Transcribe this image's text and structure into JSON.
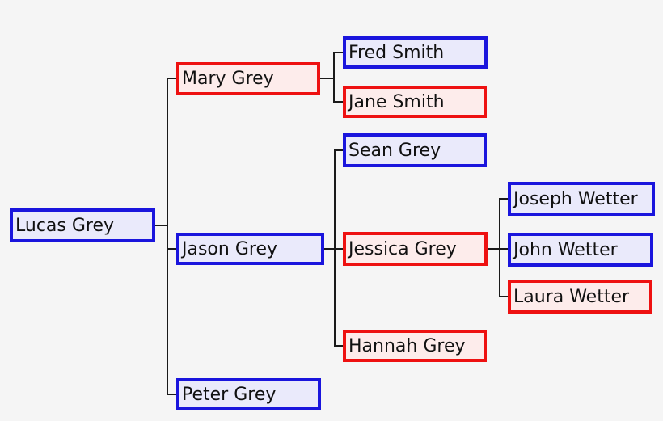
{
  "diagram": {
    "type": "family-tree",
    "colors": {
      "blue_border": "#1a15dd",
      "blue_fill": "#eaeafb",
      "red_border": "#ee1111",
      "red_fill": "#fdeceb",
      "line": "#1a1a1a",
      "background": "#f5f5f5"
    },
    "nodes": {
      "lucas": {
        "label": "Lucas Grey",
        "color": "blue"
      },
      "mary": {
        "label": "Mary Grey",
        "color": "red"
      },
      "jason": {
        "label": "Jason Grey",
        "color": "blue"
      },
      "peter": {
        "label": "Peter Grey",
        "color": "blue"
      },
      "fred": {
        "label": "Fred Smith",
        "color": "blue"
      },
      "jane": {
        "label": "Jane Smith",
        "color": "red"
      },
      "sean": {
        "label": "Sean Grey",
        "color": "blue"
      },
      "jessica": {
        "label": "Jessica Grey",
        "color": "red"
      },
      "hannah": {
        "label": "Hannah Grey",
        "color": "red"
      },
      "joseph": {
        "label": "Joseph Wetter",
        "color": "blue"
      },
      "john": {
        "label": "John Wetter",
        "color": "blue"
      },
      "laura": {
        "label": "Laura Wetter",
        "color": "red"
      }
    },
    "tree": {
      "name": "Lucas Grey",
      "children": [
        {
          "name": "Mary Grey",
          "children": [
            {
              "name": "Fred Smith"
            },
            {
              "name": "Jane Smith"
            }
          ]
        },
        {
          "name": "Jason Grey",
          "children": [
            {
              "name": "Sean Grey"
            },
            {
              "name": "Jessica Grey",
              "children": [
                {
                  "name": "Joseph Wetter"
                },
                {
                  "name": "John Wetter"
                },
                {
                  "name": "Laura Wetter"
                }
              ]
            },
            {
              "name": "Hannah Grey"
            }
          ]
        },
        {
          "name": "Peter Grey"
        }
      ]
    }
  }
}
